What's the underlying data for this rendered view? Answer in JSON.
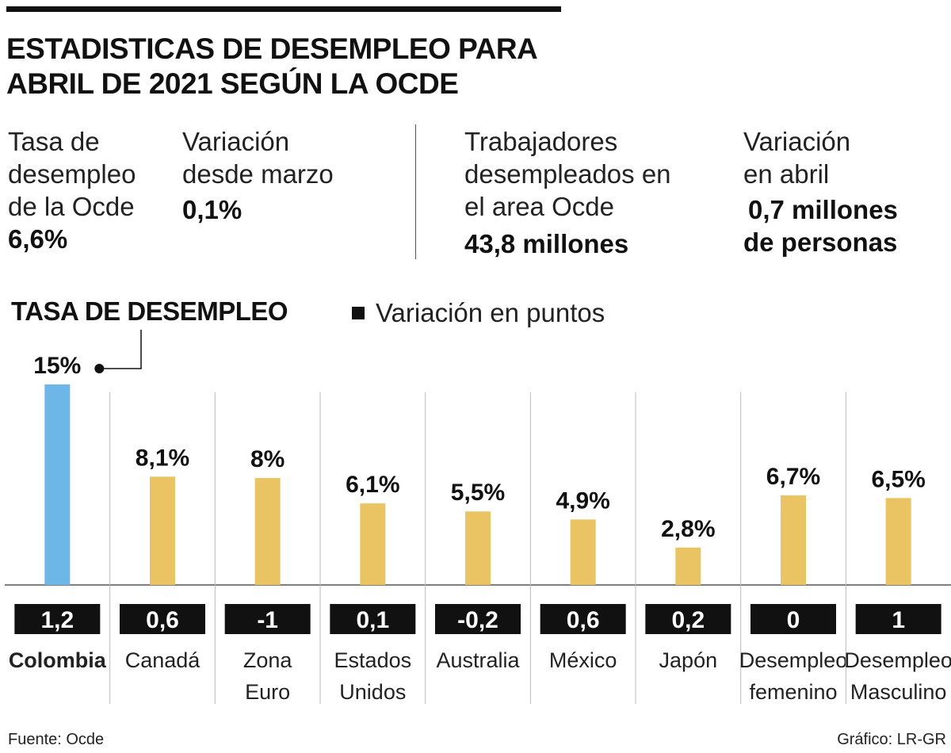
{
  "header": {
    "title_lines": [
      "ESTADISTICAS DE DESEMPLEO PARA",
      "ABRIL DE 2021 SEGÚN LA OCDE"
    ]
  },
  "stats": [
    {
      "label_lines": [
        "Tasa de",
        "desempleo",
        "de la Ocde"
      ],
      "value": "6,6%"
    },
    {
      "label_lines": [
        "Variación",
        "desde marzo"
      ],
      "value": "0,1%"
    },
    {
      "label_lines": [
        "Trabajadores",
        "desempleados en",
        "el area Ocde"
      ],
      "value": "43,8 millones"
    },
    {
      "label_lines": [
        "Variación",
        "en abril"
      ],
      "value_lines": [
        "0,7 millones",
        "de personas"
      ]
    }
  ],
  "chart_data": {
    "type": "bar",
    "title": "TASA DE DESEMPLEO",
    "legend": "Variación en puntos",
    "ylim": [
      0,
      15
    ],
    "unit": "%",
    "categories": [
      {
        "name_lines": [
          "Colombia"
        ],
        "value": 15,
        "label": "15%",
        "variation": "1,2",
        "highlight": true
      },
      {
        "name_lines": [
          "Canadá"
        ],
        "value": 8.1,
        "label": "8,1%",
        "variation": "0,6",
        "highlight": false
      },
      {
        "name_lines": [
          "Zona",
          "Euro"
        ],
        "value": 8,
        "label": "8%",
        "variation": "-1",
        "highlight": false
      },
      {
        "name_lines": [
          "Estados",
          "Unidos"
        ],
        "value": 6.1,
        "label": "6,1%",
        "variation": "0,1",
        "highlight": false
      },
      {
        "name_lines": [
          "Australia"
        ],
        "value": 5.5,
        "label": "5,5%",
        "variation": "-0,2",
        "highlight": false
      },
      {
        "name_lines": [
          "México"
        ],
        "value": 4.9,
        "label": "4,9%",
        "variation": "0,6",
        "highlight": false
      },
      {
        "name_lines": [
          "Japón"
        ],
        "value": 2.8,
        "label": "2,8%",
        "variation": "0,2",
        "highlight": false
      },
      {
        "name_lines": [
          "Desempleo",
          "femenino"
        ],
        "value": 6.7,
        "label": "6,7%",
        "variation": "0",
        "highlight": false
      },
      {
        "name_lines": [
          "Desempleo",
          "Masculino"
        ],
        "value": 6.5,
        "label": "6,5%",
        "variation": "1",
        "highlight": false
      }
    ],
    "colors": {
      "highlight": "#6cb7e8",
      "bar": "#eac462",
      "variation_box": "#111111",
      "variation_text": "#ffffff"
    }
  },
  "footer": {
    "source": "Fuente: Ocde",
    "credit": "Gráfico: LR-GR"
  }
}
